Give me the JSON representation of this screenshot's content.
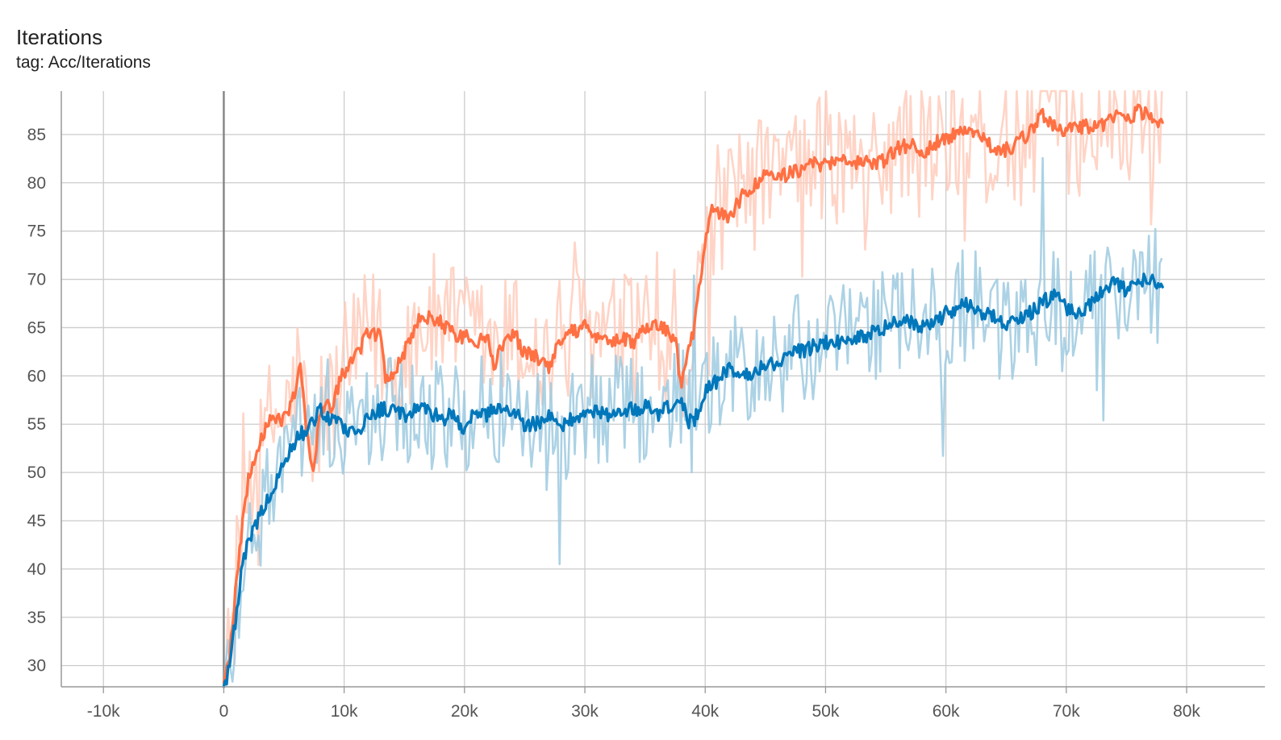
{
  "card": {
    "title": "Iterations",
    "subtitle": "tag: Acc/Iterations"
  },
  "colors": {
    "orange": "#ff7043",
    "orange_raw": "#ffccbc",
    "blue": "#0077bb",
    "blue_raw": "#9ecae1",
    "grid": "#cccccc",
    "axis": "#999999",
    "zero_line": "#888888"
  },
  "chart_data": {
    "type": "line",
    "title": "Iterations",
    "subtitle": "tag: Acc/Iterations",
    "xlabel": "",
    "ylabel": "",
    "x_ticks": [
      "-10k",
      "0",
      "10k",
      "20k",
      "30k",
      "40k",
      "50k",
      "60k",
      "70k",
      "80k"
    ],
    "y_ticks": [
      "30",
      "35",
      "40",
      "45",
      "50",
      "55",
      "60",
      "65",
      "70",
      "75",
      "80",
      "85"
    ],
    "xlim": [
      -13500,
      86500
    ],
    "ylim": [
      27.8,
      89.5
    ],
    "grid": true,
    "series": [
      {
        "color": "#ff7043",
        "raw_color": "#ffccbc",
        "x": [
          0,
          500,
          1000,
          1500,
          2000,
          3000,
          4000,
          5000,
          5500,
          6000,
          6300,
          7000,
          7500,
          8000,
          9000,
          10000,
          11000,
          12000,
          13000,
          13500,
          14000,
          15000,
          16000,
          17000,
          18000,
          19000,
          20000,
          21000,
          22000,
          22500,
          23000,
          24000,
          25000,
          26000,
          27000,
          28000,
          29000,
          30000,
          31000,
          32000,
          33000,
          34000,
          35000,
          36000,
          37000,
          37500,
          38000,
          38500,
          39000,
          39500,
          40000,
          40500,
          41000,
          42000,
          43000,
          44000,
          45000,
          46000,
          47000,
          48000,
          49000,
          50000,
          51000,
          52000,
          53000,
          54000,
          55000,
          56000,
          57000,
          58000,
          59000,
          60000,
          61000,
          62000,
          63000,
          64000,
          65000,
          66000,
          67000,
          68000,
          69000,
          70000,
          71000,
          72000,
          73000,
          74000,
          75000,
          76000,
          77000,
          78000
        ],
        "y": [
          28,
          31,
          38,
          44,
          49,
          53.5,
          55.5,
          55.5,
          57,
          58.5,
          61.5,
          53,
          50,
          56.5,
          57,
          60.5,
          62,
          64.5,
          64,
          59.5,
          60,
          62.5,
          65.5,
          66,
          65.5,
          64.5,
          64,
          63.5,
          64,
          61,
          63,
          64.5,
          62.5,
          62,
          61,
          64,
          64.5,
          65,
          64,
          63.5,
          64,
          63.5,
          65,
          65.5,
          64.5,
          64,
          59,
          62,
          64.5,
          69,
          74,
          77,
          77,
          76.5,
          78.5,
          79.5,
          81,
          80.5,
          81,
          81.5,
          82,
          82,
          82,
          82.5,
          82,
          82,
          82.5,
          83.5,
          84,
          83,
          84,
          84.5,
          85,
          85,
          84.5,
          83.5,
          83.5,
          84,
          85.5,
          87,
          86,
          85.5,
          85.5,
          86,
          86,
          87,
          86.5,
          87.5,
          87,
          86
        ]
      },
      {
        "color": "#0077bb",
        "raw_color": "#9ecae1",
        "x": [
          0,
          500,
          1000,
          1500,
          2000,
          2500,
          3000,
          4000,
          5000,
          6000,
          7000,
          8000,
          9000,
          10000,
          11000,
          12000,
          13000,
          14000,
          15000,
          16000,
          17000,
          18000,
          19000,
          20000,
          21000,
          22000,
          23000,
          24000,
          25000,
          26000,
          27000,
          28000,
          29000,
          30000,
          31000,
          32000,
          33000,
          34000,
          35000,
          36000,
          37000,
          38000,
          38500,
          39000,
          40000,
          41000,
          42000,
          43000,
          44000,
          45000,
          46000,
          47000,
          48000,
          49000,
          50000,
          51000,
          52000,
          53000,
          54000,
          55000,
          56000,
          57000,
          58000,
          59000,
          60000,
          61000,
          62000,
          63000,
          64000,
          65000,
          66000,
          67000,
          68000,
          69000,
          70000,
          71000,
          72000,
          73000,
          74000,
          75000,
          76000,
          77000,
          78000
        ],
        "y": [
          27.5,
          30,
          35,
          40,
          42.5,
          44,
          45.5,
          48,
          51,
          53.5,
          54.5,
          56.5,
          55.5,
          54.5,
          54,
          56,
          56.5,
          56.5,
          56,
          56.5,
          56.5,
          55.5,
          56,
          54.5,
          56.5,
          56,
          57,
          56.5,
          55,
          55,
          56,
          55,
          55.5,
          56,
          56.5,
          56,
          56.5,
          56.5,
          57,
          56,
          57,
          57.5,
          55.5,
          55,
          58.5,
          59.5,
          61,
          59.5,
          60.5,
          61,
          61.5,
          62.5,
          62.5,
          63,
          63.5,
          63.5,
          63.5,
          64,
          64.5,
          65,
          65.5,
          65.5,
          65,
          65.5,
          66.5,
          67,
          67.5,
          66.5,
          66,
          65,
          66,
          66.5,
          67.5,
          68.5,
          67,
          66.5,
          67.5,
          69,
          69.5,
          69,
          70,
          70,
          69
        ]
      }
    ]
  }
}
